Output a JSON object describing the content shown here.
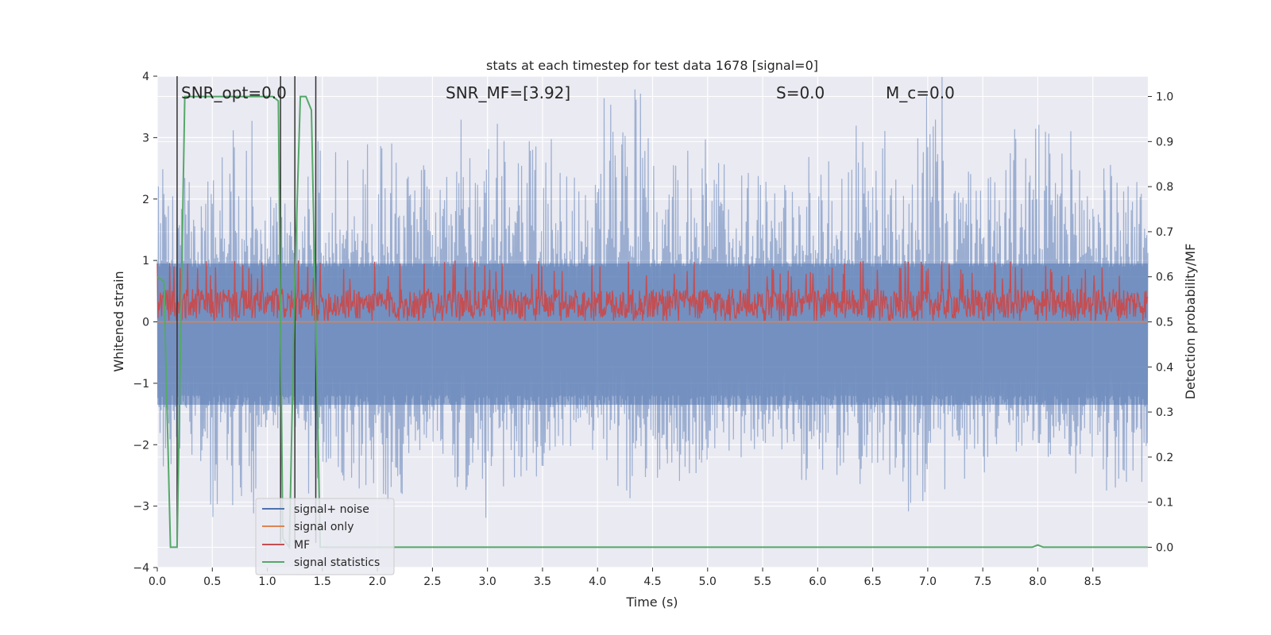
{
  "chart_data": {
    "type": "line",
    "title": "stats at each timestep for test data 1678 [signal=0]",
    "xlabel": "Time (s)",
    "ylabel": "Whitened strain",
    "y2label": "Detection probability/MF",
    "xlim": [
      0.0,
      9.0
    ],
    "ylim": [
      -4.0,
      4.0
    ],
    "y2lim": [
      -0.045,
      1.045
    ],
    "xticks": [
      0.0,
      0.5,
      1.0,
      1.5,
      2.0,
      2.5,
      3.0,
      3.5,
      4.0,
      4.5,
      5.0,
      5.5,
      6.0,
      6.5,
      7.0,
      7.5,
      8.0,
      8.5
    ],
    "xtick_labels": [
      "0.0",
      "0.5",
      "1.0",
      "1.5",
      "2.0",
      "2.5",
      "3.0",
      "3.5",
      "4.0",
      "4.5",
      "5.0",
      "5.5",
      "6.0",
      "6.5",
      "7.0",
      "7.5",
      "8.0",
      "8.5"
    ],
    "yticks": [
      4,
      3,
      2,
      1,
      0,
      -1,
      -2,
      -3,
      -4
    ],
    "ytick_labels": [
      "4",
      "3",
      "2",
      "1",
      "0",
      "−1",
      "−2",
      "−3",
      "−4"
    ],
    "y2ticks": [
      1.0,
      0.9,
      0.8,
      0.7,
      0.6,
      0.5,
      0.4,
      0.3,
      0.2,
      0.1,
      0.0
    ],
    "y2tick_labels": [
      "1.0",
      "0.9",
      "0.8",
      "0.7",
      "0.6",
      "0.5",
      "0.4",
      "0.3",
      "0.2",
      "0.1",
      "0.0"
    ],
    "grid": true,
    "legend_position": "lower-left",
    "annotations": [
      {
        "text": "SNR_opt=0.0",
        "x": 0.2,
        "y": 4.05
      },
      {
        "text": "SNR_MF=[3.92]",
        "x": 2.6,
        "y": 4.05
      },
      {
        "text": "S=0.0",
        "x": 5.6,
        "y": 4.05
      },
      {
        "text": "M_c=0.0",
        "x": 6.6,
        "y": 4.05
      }
    ],
    "vertical_lines": {
      "x": [
        0.18,
        1.12,
        1.25,
        1.44
      ],
      "ymin": -3.6,
      "ymax": 4.0
    },
    "series": [
      {
        "name": "signal+ noise",
        "color": "#4c72b0",
        "kind": "noise",
        "axis": "left",
        "range_low": [
          -2.6,
          -3.3,
          -1.8,
          -2.8,
          -3.0,
          -2.2,
          -3.3,
          -2.6,
          -2.1,
          -3.0,
          -2.6,
          -2.3,
          -2.1,
          -2.6,
          -2.9,
          -3.1,
          -2.7,
          -2.2,
          -2.5,
          -2.9
        ],
        "range_high": [
          2.5,
          3.3,
          2.4,
          3.0,
          3.0,
          2.6,
          3.5,
          3.0,
          2.9,
          3.8,
          2.8,
          3.0,
          2.6,
          2.7,
          3.2,
          4.0,
          2.7,
          3.3,
          3.2,
          2.6
        ]
      },
      {
        "name": "signal only",
        "color": "#dd8452",
        "kind": "line",
        "axis": "left",
        "x": [
          0.0,
          9.0
        ],
        "y": [
          0.0,
          0.0
        ]
      },
      {
        "name": "MF",
        "color": "#c44e52",
        "kind": "mf",
        "axis": "left",
        "center": 0.3,
        "range_low": 0.0,
        "range_high": 1.0
      },
      {
        "name": "signal statistics",
        "color": "#55a868",
        "kind": "line",
        "axis": "right",
        "x": [
          0.0,
          0.06,
          0.12,
          0.18,
          0.22,
          0.25,
          0.3,
          0.9,
          1.05,
          1.1,
          1.14,
          1.2,
          1.25,
          1.3,
          1.35,
          1.4,
          1.44,
          1.48,
          1.5,
          2.0,
          7.5,
          7.95,
          8.0,
          8.05,
          9.0
        ],
        "y": [
          0.6,
          0.59,
          0.0,
          0.0,
          0.58,
          1.0,
          1.0,
          1.0,
          1.0,
          0.99,
          0.02,
          0.0,
          0.6,
          1.0,
          1.0,
          0.97,
          0.5,
          0.0,
          0.0,
          0.0,
          0.0,
          0.0,
          0.005,
          0.0,
          0.0
        ]
      }
    ]
  },
  "legend": [
    {
      "label": "signal+ noise",
      "color": "#4c72b0"
    },
    {
      "label": "signal only",
      "color": "#dd8452"
    },
    {
      "label": "MF",
      "color": "#c44e52"
    },
    {
      "label": "signal statistics",
      "color": "#55a868"
    }
  ],
  "colors": {
    "axes_bg": "#eaeaf2",
    "grid": "#ffffff",
    "vline": "#333333"
  }
}
